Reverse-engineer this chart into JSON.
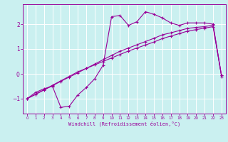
{
  "xlabel": "Windchill (Refroidissement éolien,°C)",
  "bg_color": "#caf0f0",
  "grid_color": "#ffffff",
  "line_color": "#990099",
  "xlim": [
    -0.5,
    23.5
  ],
  "ylim": [
    -1.6,
    2.8
  ],
  "xticks": [
    0,
    1,
    2,
    3,
    4,
    5,
    6,
    7,
    8,
    9,
    10,
    11,
    12,
    13,
    14,
    15,
    16,
    17,
    18,
    19,
    20,
    21,
    22,
    23
  ],
  "yticks": [
    -1,
    0,
    1,
    2
  ],
  "curve1_x": [
    0,
    1,
    2,
    3,
    4,
    5,
    6,
    7,
    8,
    9,
    10,
    11,
    12,
    13,
    14,
    15,
    16,
    17,
    18,
    19,
    20,
    21,
    22,
    23
  ],
  "curve1_y": [
    -1.0,
    -0.75,
    -0.6,
    -0.5,
    -1.35,
    -1.3,
    -0.85,
    -0.55,
    -0.2,
    0.35,
    2.3,
    2.35,
    1.95,
    2.1,
    2.5,
    2.4,
    2.25,
    2.05,
    1.95,
    2.05,
    2.05,
    2.05,
    2.0,
    -0.1
  ],
  "curve2_x": [
    0,
    1,
    2,
    3,
    4,
    5,
    6,
    7,
    8,
    9,
    10,
    11,
    12,
    13,
    14,
    15,
    16,
    17,
    18,
    19,
    20,
    21,
    22,
    23
  ],
  "curve2_y": [
    -1.0,
    -0.83,
    -0.65,
    -0.48,
    -0.3,
    -0.13,
    0.04,
    0.22,
    0.39,
    0.57,
    0.74,
    0.91,
    1.04,
    1.17,
    1.3,
    1.43,
    1.57,
    1.65,
    1.74,
    1.83,
    1.87,
    1.9,
    1.96,
    -0.07
  ],
  "curve3_x": [
    0,
    1,
    2,
    3,
    4,
    5,
    6,
    7,
    8,
    9,
    10,
    11,
    12,
    13,
    14,
    15,
    16,
    17,
    18,
    19,
    20,
    21,
    22,
    23
  ],
  "curve3_y": [
    -1.0,
    -0.82,
    -0.64,
    -0.46,
    -0.28,
    -0.1,
    0.08,
    0.22,
    0.36,
    0.5,
    0.64,
    0.78,
    0.92,
    1.04,
    1.16,
    1.28,
    1.42,
    1.52,
    1.62,
    1.72,
    1.78,
    1.84,
    1.9,
    -0.07
  ]
}
